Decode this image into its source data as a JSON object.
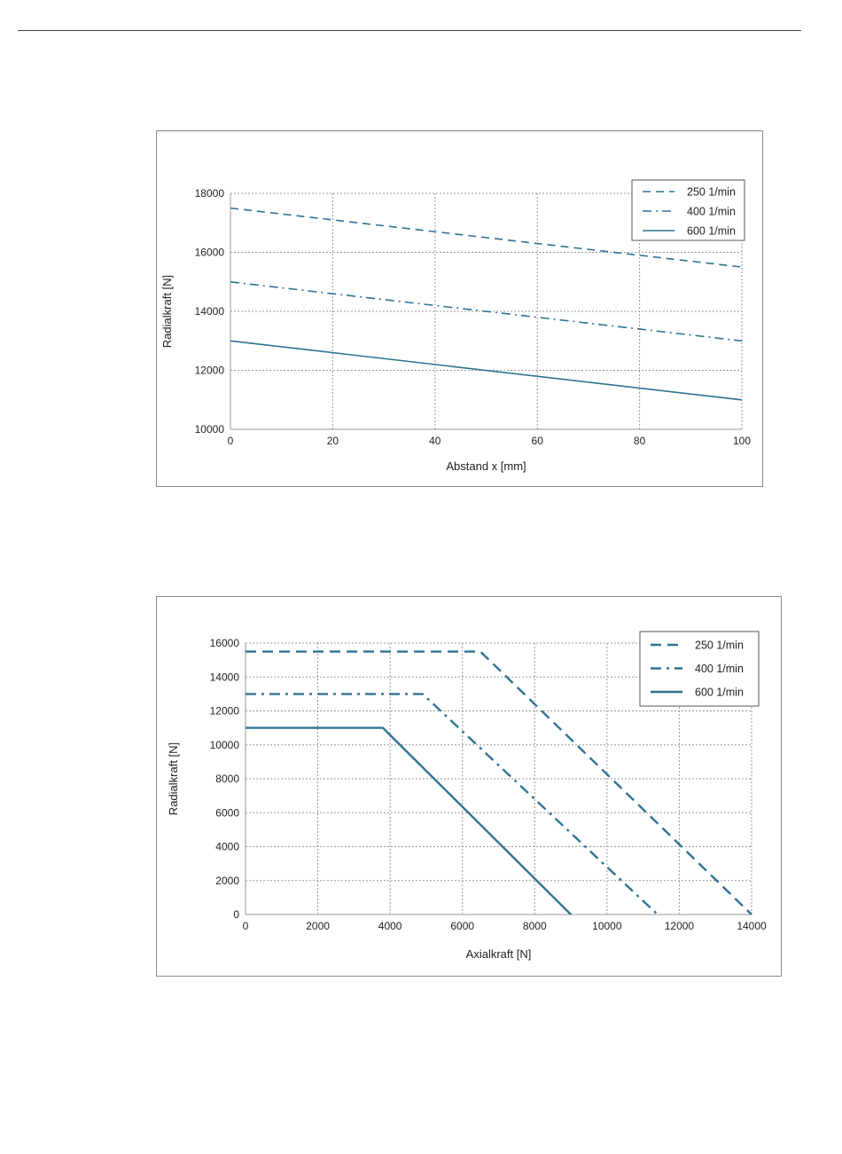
{
  "chart_data": [
    {
      "type": "line",
      "xlabel": "Abstand x [mm]",
      "ylabel": "Radialkraft [N]",
      "xlim": [
        0,
        100
      ],
      "ylim": [
        10000,
        18000
      ],
      "xticks": [
        0,
        20,
        40,
        60,
        80,
        100
      ],
      "yticks": [
        10000,
        12000,
        14000,
        16000,
        18000
      ],
      "grid": true,
      "legend_position": "top-right",
      "series": [
        {
          "name": "250 1/min",
          "style": "dash",
          "x": [
            0,
            100
          ],
          "y": [
            17500,
            15500
          ]
        },
        {
          "name": "400 1/min",
          "style": "dashdot",
          "x": [
            0,
            100
          ],
          "y": [
            15000,
            13000
          ]
        },
        {
          "name": "600 1/min",
          "style": "solid",
          "x": [
            0,
            100
          ],
          "y": [
            13000,
            11000
          ]
        }
      ],
      "line_color": "#2e7393"
    },
    {
      "type": "line",
      "xlabel": "Axialkraft [N]",
      "ylabel": "Radialkraft [N]",
      "xlim": [
        0,
        14000
      ],
      "ylim": [
        0,
        16000
      ],
      "xticks": [
        0,
        2000,
        4000,
        6000,
        8000,
        10000,
        12000,
        14000
      ],
      "yticks": [
        0,
        2000,
        4000,
        6000,
        8000,
        10000,
        12000,
        14000,
        16000
      ],
      "grid": true,
      "legend_position": "top-right",
      "series": [
        {
          "name": "250 1/min",
          "style": "dash",
          "x": [
            0,
            6500,
            14000
          ],
          "y": [
            15500,
            15500,
            0
          ]
        },
        {
          "name": "400 1/min",
          "style": "dashdot",
          "x": [
            0,
            4900,
            11400
          ],
          "y": [
            13000,
            13000,
            0
          ]
        },
        {
          "name": "600 1/min",
          "style": "solid",
          "x": [
            0,
            3800,
            9000
          ],
          "y": [
            11000,
            11000,
            0
          ]
        }
      ],
      "line_color": "#2e7393"
    }
  ]
}
